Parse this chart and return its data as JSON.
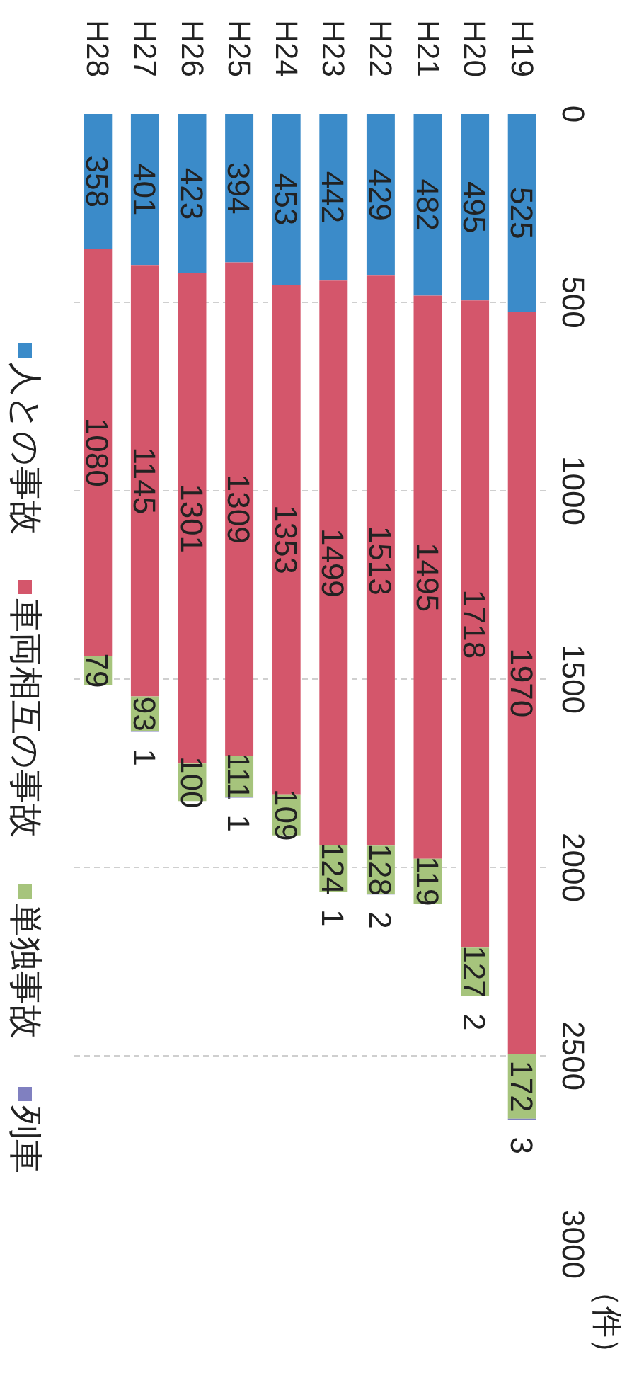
{
  "chart_data": {
    "type": "bar",
    "stacked": true,
    "categories": [
      "H28",
      "H27",
      "H26",
      "H25",
      "H24",
      "H23",
      "H22",
      "H21",
      "H20",
      "H19"
    ],
    "series": [
      {
        "name": "人との事故",
        "color": "#3b8bc9",
        "values": [
          358,
          401,
          423,
          394,
          453,
          442,
          429,
          482,
          495,
          525
        ]
      },
      {
        "name": "車両相互の事故",
        "color": "#d4566b",
        "values": [
          1080,
          1145,
          1301,
          1309,
          1353,
          1499,
          1513,
          1495,
          1718,
          1970
        ]
      },
      {
        "name": "単独事故",
        "color": "#a6c47c",
        "values": [
          79,
          93,
          100,
          111,
          109,
          124,
          128,
          119,
          127,
          172
        ]
      },
      {
        "name": "列車",
        "color": "#8080c0",
        "values": [
          null,
          1,
          null,
          1,
          null,
          1,
          2,
          null,
          2,
          3
        ]
      }
    ],
    "ylabel": "（件）",
    "ylim": [
      3000,
      0
    ],
    "yticks": [
      0,
      500,
      1000,
      1500,
      2000,
      2500,
      3000
    ],
    "grid": "y",
    "legend": "left",
    "data_labels": true
  }
}
